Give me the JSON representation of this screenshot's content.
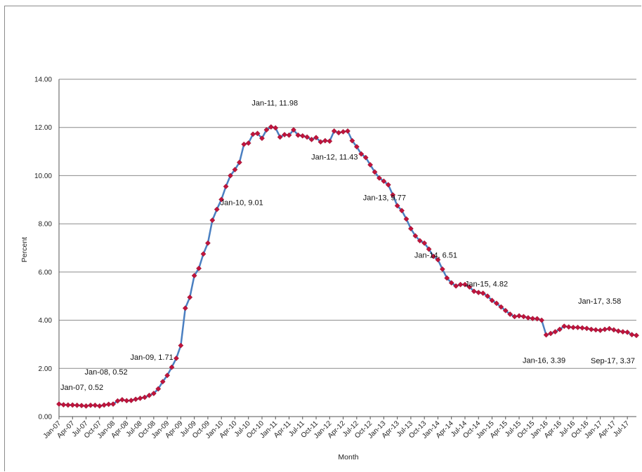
{
  "chart_data": {
    "type": "line",
    "title": "",
    "xlabel": "Month",
    "ylabel": "Percent",
    "ylim": [
      0,
      14
    ],
    "yticks": [
      "0.00",
      "2.00",
      "4.00",
      "6.00",
      "8.00",
      "10.00",
      "12.00",
      "14.00"
    ],
    "grid": "horizontal",
    "legend": "none",
    "line_color": "#4a7fc1",
    "marker_color": "#c0143c",
    "categories": [
      "Jan-07",
      "Feb-07",
      "Mar-07",
      "Apr-07",
      "May-07",
      "Jun-07",
      "Jul-07",
      "Aug-07",
      "Sep-07",
      "Oct-07",
      "Nov-07",
      "Dec-07",
      "Jan-08",
      "Feb-08",
      "Mar-08",
      "Apr-08",
      "May-08",
      "Jun-08",
      "Jul-08",
      "Aug-08",
      "Sep-08",
      "Oct-08",
      "Nov-08",
      "Dec-08",
      "Jan-09",
      "Feb-09",
      "Mar-09",
      "Apr-09",
      "May-09",
      "Jun-09",
      "Jul-09",
      "Aug-09",
      "Sep-09",
      "Oct-09",
      "Nov-09",
      "Dec-09",
      "Jan-10",
      "Feb-10",
      "Mar-10",
      "Apr-10",
      "May-10",
      "Jun-10",
      "Jul-10",
      "Aug-10",
      "Sep-10",
      "Oct-10",
      "Nov-10",
      "Dec-10",
      "Jan-11",
      "Feb-11",
      "Mar-11",
      "Apr-11",
      "May-11",
      "Jun-11",
      "Jul-11",
      "Aug-11",
      "Sep-11",
      "Oct-11",
      "Nov-11",
      "Dec-11",
      "Jan-12",
      "Feb-12",
      "Mar-12",
      "Apr-12",
      "May-12",
      "Jun-12",
      "Jul-12",
      "Aug-12",
      "Sep-12",
      "Oct-12",
      "Nov-12",
      "Dec-12",
      "Jan-13",
      "Feb-13",
      "Mar-13",
      "Apr-13",
      "May-13",
      "Jun-13",
      "Jul-13",
      "Aug-13",
      "Sep-13",
      "Oct-13",
      "Nov-13",
      "Dec-13",
      "Jan-14",
      "Feb-14",
      "Mar-14",
      "Apr-14",
      "May-14",
      "Jun-14",
      "Jul-14",
      "Aug-14",
      "Sep-14",
      "Oct-14",
      "Nov-14",
      "Dec-14",
      "Jan-15",
      "Feb-15",
      "Mar-15",
      "Apr-15",
      "May-15",
      "Jun-15",
      "Jul-15",
      "Aug-15",
      "Sep-15",
      "Oct-15",
      "Nov-15",
      "Dec-15",
      "Jan-16",
      "Feb-16",
      "Mar-16",
      "Apr-16",
      "May-16",
      "Jun-16",
      "Jul-16",
      "Aug-16",
      "Sep-16",
      "Oct-16",
      "Nov-16",
      "Dec-16",
      "Jan-17",
      "Feb-17",
      "Mar-17",
      "Apr-17",
      "May-17",
      "Jun-17",
      "Jul-17",
      "Aug-17",
      "Sep-17"
    ],
    "tick_labels": [
      "Jan-07",
      "Apr-07",
      "Jul-07",
      "Oct-07",
      "Jan-08",
      "Apr-08",
      "Jul-08",
      "Oct-08",
      "Jan-09",
      "Apr-09",
      "Jul-09",
      "Oct-09",
      "Jan-10",
      "Apr-10",
      "Jul-10",
      "Oct-10",
      "Jan-11",
      "Apr-11",
      "Jul-11",
      "Oct-11",
      "Jan-12",
      "Apr-12",
      "Jul-12",
      "Oct-12",
      "Jan-13",
      "Apr-13",
      "Jul-13",
      "Oct-13",
      "Jan-14",
      "Apr-14",
      "Jul-14",
      "Oct-14",
      "Jan-15",
      "Apr-15",
      "Jul-15",
      "Oct-15",
      "Jan-16",
      "Apr-16",
      "Jul-16",
      "Oct-16",
      "Jan-17",
      "Apr-17",
      "Jul-17"
    ],
    "series": [
      {
        "values": [
          0.52,
          0.49,
          0.48,
          0.48,
          0.47,
          0.46,
          0.44,
          0.47,
          0.47,
          0.44,
          0.48,
          0.51,
          0.52,
          0.65,
          0.7,
          0.66,
          0.67,
          0.72,
          0.76,
          0.8,
          0.88,
          0.96,
          1.15,
          1.45,
          1.71,
          2.05,
          2.42,
          2.95,
          4.5,
          4.95,
          5.85,
          6.15,
          6.75,
          7.2,
          8.15,
          8.6,
          9.01,
          9.55,
          10.0,
          10.25,
          10.55,
          11.3,
          11.35,
          11.72,
          11.75,
          11.55,
          11.9,
          12.02,
          11.98,
          11.6,
          11.7,
          11.68,
          11.9,
          11.68,
          11.65,
          11.6,
          11.5,
          11.58,
          11.4,
          11.45,
          11.43,
          11.85,
          11.78,
          11.82,
          11.85,
          11.45,
          11.2,
          10.9,
          10.75,
          10.45,
          10.15,
          9.9,
          9.77,
          9.62,
          9.2,
          8.75,
          8.55,
          8.2,
          7.8,
          7.5,
          7.3,
          7.2,
          6.95,
          6.65,
          6.51,
          6.12,
          5.75,
          5.55,
          5.42,
          5.48,
          5.48,
          5.38,
          5.2,
          5.15,
          5.12,
          5.0,
          4.82,
          4.7,
          4.55,
          4.4,
          4.25,
          4.15,
          4.18,
          4.15,
          4.1,
          4.07,
          4.06,
          4.0,
          3.39,
          3.45,
          3.52,
          3.62,
          3.75,
          3.72,
          3.7,
          3.7,
          3.68,
          3.66,
          3.62,
          3.6,
          3.58,
          3.62,
          3.65,
          3.6,
          3.55,
          3.52,
          3.5,
          3.4,
          3.37
        ]
      }
    ],
    "annotations": [
      {
        "index": 0,
        "text": "Jan-07, 0.52"
      },
      {
        "index": 12,
        "text": "Jan-08,  0.52"
      },
      {
        "index": 24,
        "text": "Jan-09,  1.71"
      },
      {
        "index": 36,
        "text": "Jan-10,  9.01"
      },
      {
        "index": 48,
        "text": "Jan-11,  11.98"
      },
      {
        "index": 60,
        "text": "Jan-12,  11.43"
      },
      {
        "index": 72,
        "text": "Jan-13,  9.77"
      },
      {
        "index": 84,
        "text": "Jan-14,  6.51"
      },
      {
        "index": 96,
        "text": "Jan-15,  4.82"
      },
      {
        "index": 108,
        "text": "Jan-16,  3.39"
      },
      {
        "index": 120,
        "text": "Jan-17,  3.58"
      },
      {
        "index": 128,
        "text": "Sep-17, 3.37"
      }
    ]
  }
}
